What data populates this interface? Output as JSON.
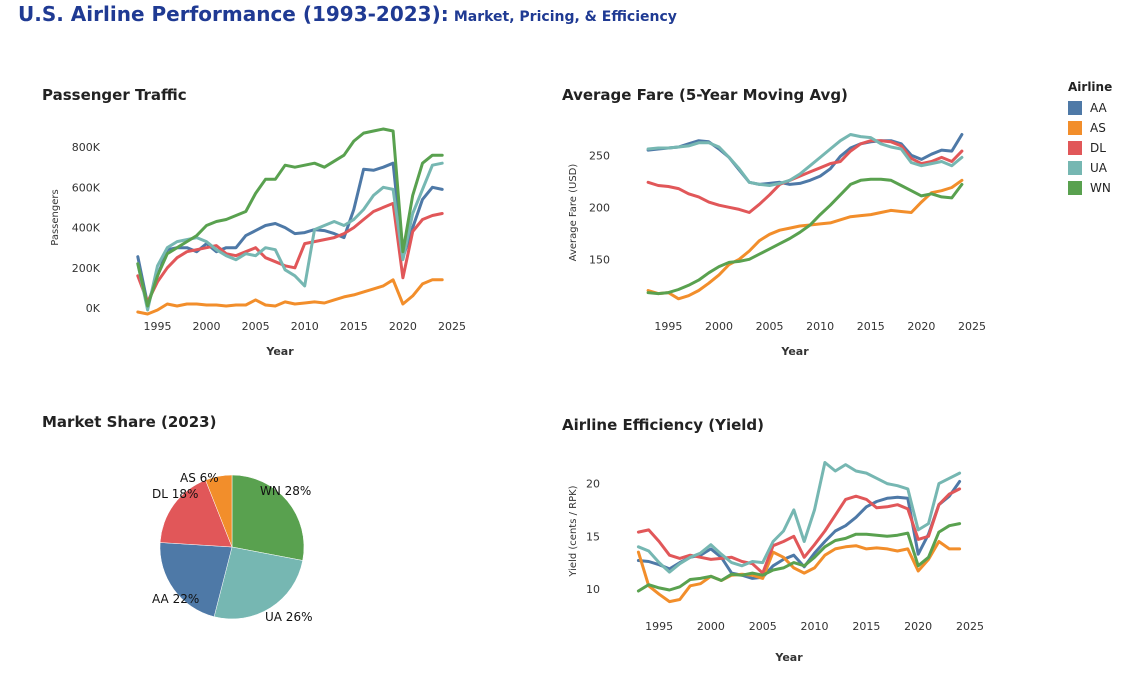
{
  "header": {
    "title": "U.S. Airline Performance (1993-2023):",
    "subtitle": "Market, Pricing, & Efficiency"
  },
  "legend": {
    "title": "Airline",
    "items": [
      {
        "label": "AA",
        "color": "#4e79a7"
      },
      {
        "label": "AS",
        "color": "#f28e2b"
      },
      {
        "label": "DL",
        "color": "#e15759"
      },
      {
        "label": "UA",
        "color": "#76b7b2"
      },
      {
        "label": "WN",
        "color": "#59a14f"
      }
    ]
  },
  "chart_data": [
    {
      "id": "traffic",
      "type": "line",
      "title": "Passenger  Traffic",
      "xlabel": "Year",
      "ylabel": "Passengers",
      "xlim": [
        1992,
        2025
      ],
      "ylim": [
        -20000,
        920000
      ],
      "xticks": [
        1995,
        2000,
        2005,
        2010,
        2015,
        2020,
        2025
      ],
      "yticks": [
        0,
        200000,
        400000,
        600000,
        800000
      ],
      "ytick_labels": [
        "0K",
        "200K",
        "400K",
        "600K",
        "800K"
      ],
      "x": [
        1993,
        1994,
        1995,
        1996,
        1997,
        1998,
        1999,
        2000,
        2001,
        2002,
        2003,
        2004,
        2005,
        2006,
        2007,
        2008,
        2009,
        2010,
        2011,
        2012,
        2013,
        2014,
        2015,
        2016,
        2017,
        2018,
        2019,
        2020,
        2021,
        2022,
        2023,
        2024
      ],
      "series": [
        {
          "name": "AA",
          "values": [
            255000,
            20000,
            160000,
            290000,
            300000,
            300000,
            280000,
            320000,
            280000,
            300000,
            300000,
            360000,
            385000,
            410000,
            420000,
            400000,
            370000,
            375000,
            390000,
            385000,
            370000,
            350000,
            490000,
            690000,
            685000,
            700000,
            720000,
            250000,
            400000,
            540000,
            600000,
            590000
          ]
        },
        {
          "name": "AS",
          "values": [
            -20000,
            -30000,
            -10000,
            20000,
            10000,
            20000,
            20000,
            15000,
            15000,
            10000,
            15000,
            15000,
            40000,
            15000,
            10000,
            30000,
            20000,
            25000,
            30000,
            25000,
            40000,
            55000,
            65000,
            80000,
            95000,
            110000,
            140000,
            20000,
            60000,
            120000,
            140000,
            140000
          ]
        },
        {
          "name": "DL",
          "values": [
            160000,
            30000,
            130000,
            200000,
            250000,
            280000,
            290000,
            300000,
            310000,
            270000,
            260000,
            280000,
            300000,
            250000,
            230000,
            210000,
            200000,
            320000,
            330000,
            340000,
            350000,
            370000,
            400000,
            440000,
            480000,
            500000,
            520000,
            150000,
            380000,
            440000,
            460000,
            470000
          ]
        },
        {
          "name": "UA",
          "values": [
            220000,
            -10000,
            210000,
            300000,
            330000,
            340000,
            350000,
            330000,
            290000,
            260000,
            240000,
            270000,
            260000,
            300000,
            290000,
            190000,
            160000,
            110000,
            390000,
            410000,
            430000,
            410000,
            440000,
            490000,
            560000,
            600000,
            590000,
            240000,
            470000,
            590000,
            710000,
            720000
          ]
        },
        {
          "name": "WN",
          "values": [
            220000,
            10000,
            160000,
            270000,
            300000,
            330000,
            360000,
            410000,
            430000,
            440000,
            460000,
            480000,
            570000,
            640000,
            640000,
            710000,
            700000,
            710000,
            720000,
            700000,
            730000,
            760000,
            830000,
            870000,
            880000,
            890000,
            880000,
            280000,
            560000,
            720000,
            760000,
            760000
          ]
        }
      ]
    },
    {
      "id": "fare",
      "type": "line",
      "title": "Average Fare (5-Year Moving Avg)",
      "xlabel": "Year",
      "ylabel": "Average Fare (USD)",
      "xlim": [
        1992,
        2025
      ],
      "ylim": [
        108,
        282
      ],
      "xticks": [
        1995,
        2000,
        2005,
        2010,
        2015,
        2020,
        2025
      ],
      "yticks": [
        150,
        200,
        250
      ],
      "x": [
        1993,
        1994,
        1995,
        1996,
        1997,
        1998,
        1999,
        2000,
        2001,
        2002,
        2003,
        2004,
        2005,
        2006,
        2007,
        2008,
        2009,
        2010,
        2011,
        2012,
        2013,
        2014,
        2015,
        2016,
        2017,
        2018,
        2019,
        2020,
        2021,
        2022,
        2023,
        2024
      ],
      "series": [
        {
          "name": "AA",
          "values": [
            255,
            256,
            257,
            258,
            261,
            264,
            263,
            256,
            248,
            236,
            224,
            222,
            223,
            224,
            222,
            223,
            226,
            230,
            237,
            249,
            257,
            261,
            263,
            264,
            264,
            261,
            250,
            246,
            251,
            255,
            254,
            270
          ]
        },
        {
          "name": "AS",
          "values": [
            120,
            117,
            118,
            112,
            115,
            120,
            127,
            135,
            145,
            150,
            158,
            168,
            174,
            178,
            180,
            182,
            183,
            184,
            185,
            188,
            191,
            192,
            193,
            195,
            197,
            196,
            195,
            205,
            214,
            216,
            219,
            226
          ]
        },
        {
          "name": "DL",
          "values": [
            224,
            221,
            220,
            218,
            213,
            210,
            205,
            202,
            200,
            198,
            195,
            203,
            212,
            222,
            226,
            230,
            234,
            238,
            242,
            244,
            254,
            261,
            264,
            264,
            263,
            259,
            247,
            242,
            244,
            248,
            244,
            254
          ]
        },
        {
          "name": "UA",
          "values": [
            256,
            257,
            257,
            258,
            259,
            262,
            262,
            258,
            248,
            237,
            224,
            222,
            221,
            223,
            226,
            232,
            240,
            248,
            256,
            264,
            270,
            268,
            267,
            261,
            258,
            256,
            243,
            240,
            242,
            244,
            240,
            248
          ]
        },
        {
          "name": "WN",
          "values": [
            118,
            117,
            118,
            121,
            125,
            130,
            137,
            143,
            147,
            148,
            150,
            155,
            160,
            165,
            170,
            176,
            183,
            193,
            202,
            212,
            222,
            226,
            227,
            227,
            226,
            221,
            216,
            211,
            213,
            210,
            209,
            222
          ]
        }
      ]
    },
    {
      "id": "share",
      "type": "pie",
      "title": "Market Share (2023)",
      "slices": [
        {
          "name": "WN",
          "value": 28,
          "label": "WN 28%"
        },
        {
          "name": "UA",
          "value": 26,
          "label": "UA 26%"
        },
        {
          "name": "AA",
          "value": 22,
          "label": "AA 22%"
        },
        {
          "name": "DL",
          "value": 18,
          "label": "DL 18%"
        },
        {
          "name": "AS",
          "value": 6,
          "label": "AS 6%"
        }
      ]
    },
    {
      "id": "yield",
      "type": "line",
      "title": "Airline Efficiency (Yield)",
      "xlabel": "Year",
      "ylabel": "Yield (cents / RPK)",
      "xlim": [
        1992,
        2025
      ],
      "ylim": [
        8,
        23
      ],
      "xticks": [
        1995,
        2000,
        2005,
        2010,
        2015,
        2020,
        2025
      ],
      "yticks": [
        10,
        15,
        20
      ],
      "x": [
        1993,
        1994,
        1995,
        1996,
        1997,
        1998,
        1999,
        2000,
        2001,
        2002,
        2003,
        2004,
        2005,
        2006,
        2007,
        2008,
        2009,
        2010,
        2011,
        2012,
        2013,
        2014,
        2015,
        2016,
        2017,
        2018,
        2019,
        2020,
        2021,
        2022,
        2023,
        2024
      ],
      "series": [
        {
          "name": "AA",
          "values": [
            12.7,
            12.6,
            12.3,
            11.9,
            12.5,
            13.0,
            13.2,
            13.8,
            13.0,
            11.5,
            11.3,
            11.0,
            11.1,
            12.2,
            12.8,
            13.2,
            12.1,
            13.4,
            14.5,
            15.5,
            16.0,
            16.8,
            17.8,
            18.3,
            18.6,
            18.7,
            18.6,
            13.3,
            15.2,
            18.0,
            18.8,
            20.2
          ]
        },
        {
          "name": "AS",
          "values": [
            13.5,
            10.3,
            9.5,
            8.8,
            9.0,
            10.3,
            10.5,
            11.2,
            10.8,
            11.3,
            11.4,
            11.3,
            11.0,
            13.5,
            13.0,
            12.0,
            11.5,
            12.0,
            13.2,
            13.8,
            14.0,
            14.1,
            13.8,
            13.9,
            13.8,
            13.6,
            13.8,
            11.7,
            12.8,
            14.5,
            13.8,
            13.8
          ]
        },
        {
          "name": "DL",
          "values": [
            15.4,
            15.6,
            14.5,
            13.2,
            12.9,
            13.2,
            13.0,
            12.8,
            12.9,
            13.0,
            12.6,
            12.4,
            11.5,
            14.1,
            14.5,
            15.0,
            13.0,
            14.2,
            15.5,
            17.0,
            18.5,
            18.8,
            18.5,
            17.7,
            17.8,
            18.0,
            17.6,
            14.7,
            15.0,
            18.0,
            19.0,
            19.5
          ]
        },
        {
          "name": "UA",
          "values": [
            14.0,
            13.6,
            12.5,
            11.6,
            12.4,
            13.0,
            13.4,
            14.2,
            13.3,
            12.5,
            12.2,
            12.6,
            12.5,
            14.5,
            15.5,
            17.5,
            14.5,
            17.5,
            22.0,
            21.2,
            21.8,
            21.2,
            21.0,
            20.5,
            20.0,
            19.8,
            19.5,
            15.6,
            16.2,
            20.0,
            20.5,
            21.0
          ]
        },
        {
          "name": "WN",
          "values": [
            9.8,
            10.4,
            10.1,
            9.9,
            10.2,
            10.9,
            11.0,
            11.2,
            10.8,
            11.4,
            11.3,
            11.5,
            11.3,
            11.8,
            12.0,
            12.5,
            12.2,
            13.0,
            14.0,
            14.6,
            14.8,
            15.2,
            15.2,
            15.1,
            15.0,
            15.1,
            15.3,
            12.2,
            13.0,
            15.4,
            16.0,
            16.2
          ]
        }
      ]
    }
  ]
}
